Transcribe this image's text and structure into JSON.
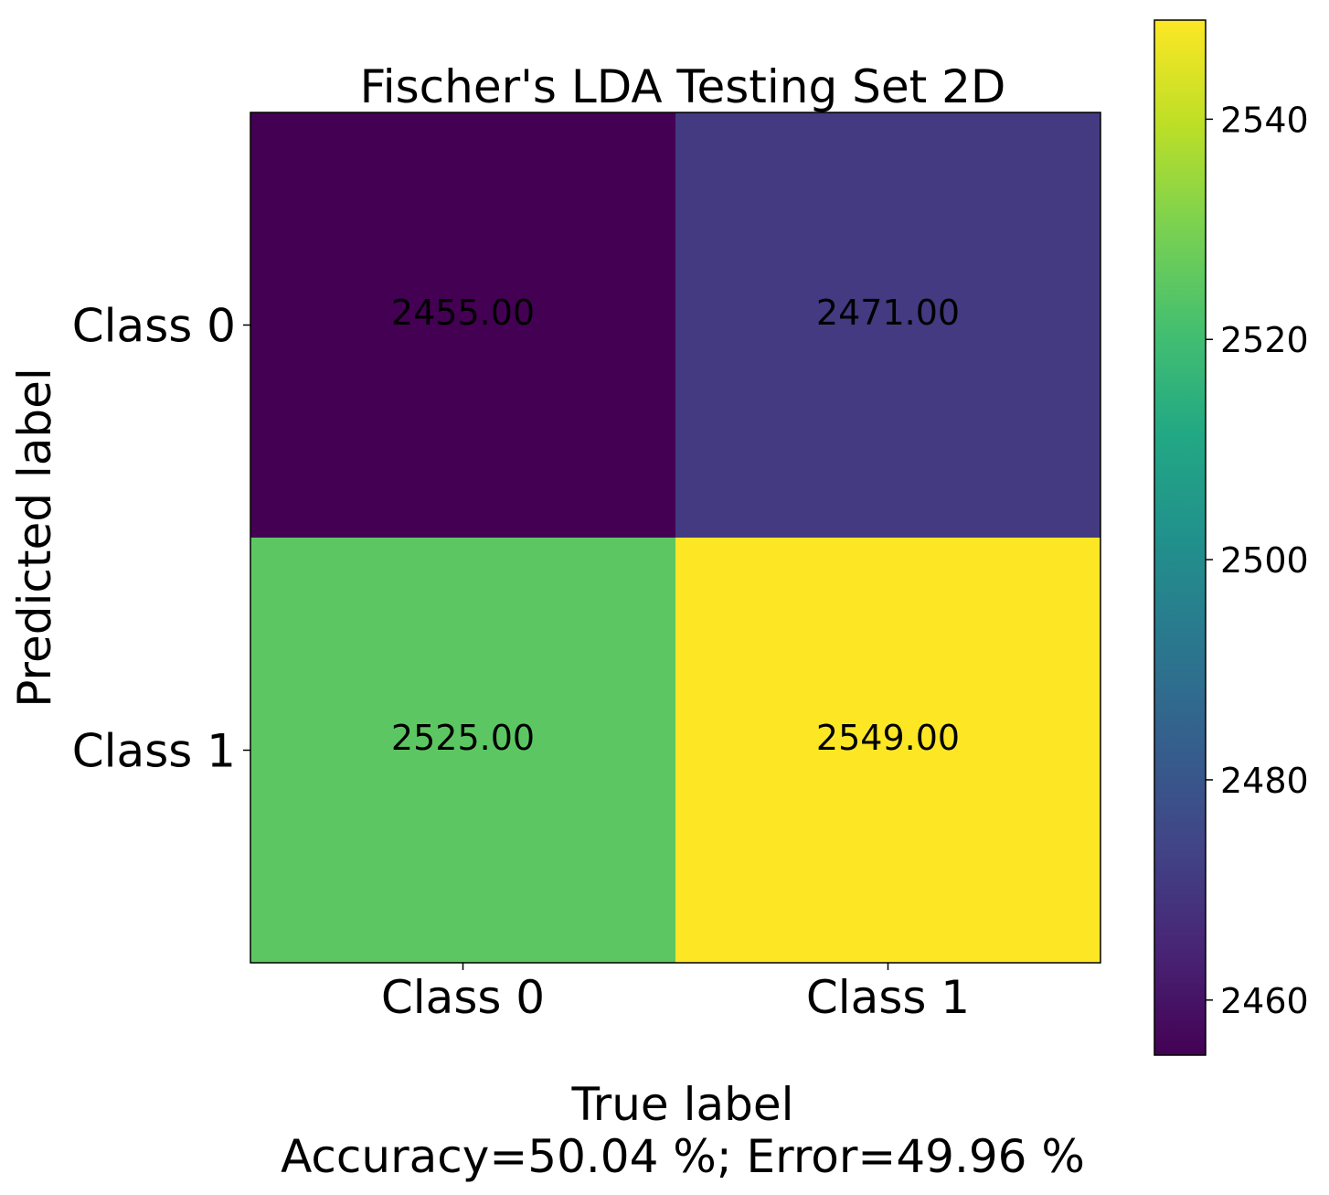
{
  "chart_data": {
    "type": "heatmap",
    "title": "Fischer's LDA Testing Set 2D",
    "xlabel": "True label",
    "xlabel_sub": "Accuracy=50.04 %; Error=49.96 %",
    "ylabel": "Predicted label",
    "x_categories": [
      "Class 0",
      "Class 1"
    ],
    "y_categories": [
      "Class 0",
      "Class 1"
    ],
    "values": [
      [
        2455,
        2471
      ],
      [
        2525,
        2549
      ]
    ],
    "cell_labels": [
      [
        "2455.00",
        "2471.00"
      ],
      [
        "2525.00",
        "2549.00"
      ]
    ],
    "colormap": "viridis",
    "colorbar": {
      "min": 2455,
      "max": 2549,
      "ticks": [
        2460,
        2480,
        2500,
        2520,
        2540
      ],
      "tick_labels": [
        "2460",
        "2480",
        "2500",
        "2520",
        "2540"
      ]
    }
  }
}
